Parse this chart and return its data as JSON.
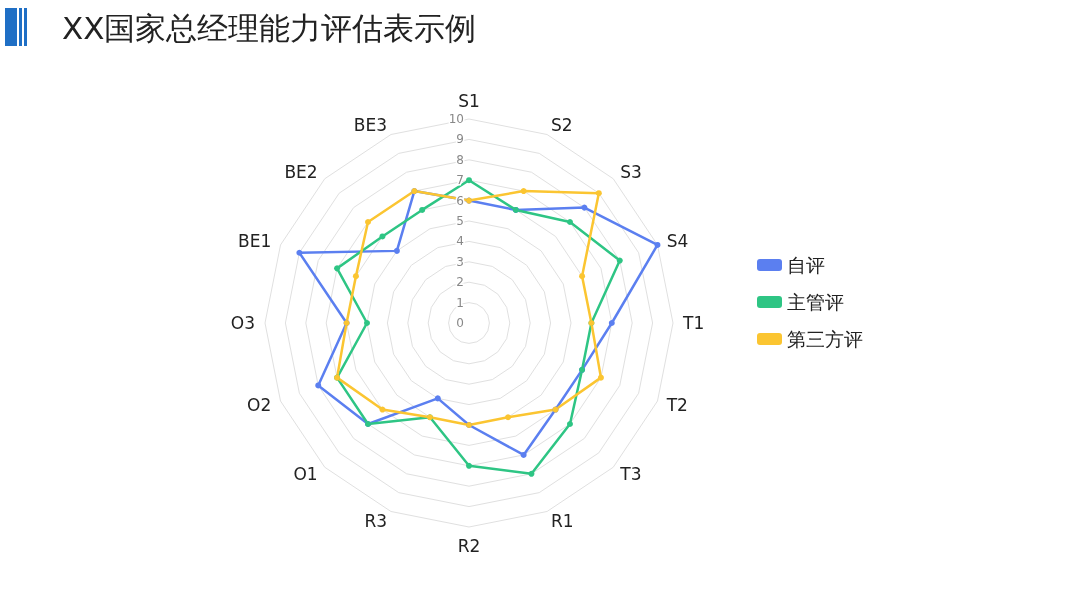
{
  "chart_data": {
    "type": "radar",
    "title": "XX国家总经理能力评估表示例",
    "categories": [
      "S1",
      "S2",
      "S3",
      "S4",
      "T1",
      "T2",
      "T3",
      "R1",
      "R2",
      "R3",
      "O1",
      "O2",
      "O3",
      "BE1",
      "BE2",
      "BE3"
    ],
    "series": [
      {
        "name": "自评",
        "color": "#5b7ff0",
        "values": [
          6,
          6,
          8,
          10,
          7,
          6,
          6,
          7,
          5,
          4,
          7,
          8,
          6,
          9,
          5,
          7
        ]
      },
      {
        "name": "主管评",
        "color": "#2ec584",
        "values": [
          7,
          6,
          7,
          8,
          6,
          6,
          7,
          8,
          7,
          5,
          7,
          7,
          5,
          7,
          6,
          6
        ]
      },
      {
        "name": "第三方评",
        "color": "#fbc531",
        "values": [
          6,
          7,
          9,
          6,
          6,
          7,
          6,
          5,
          5,
          5,
          6,
          7,
          6,
          6,
          7,
          7
        ]
      }
    ],
    "ylim": [
      0,
      10
    ],
    "yticks": [
      0,
      1,
      2,
      3,
      4,
      5,
      6,
      7,
      8,
      9,
      10
    ],
    "legend": "right",
    "marker": "circle"
  }
}
